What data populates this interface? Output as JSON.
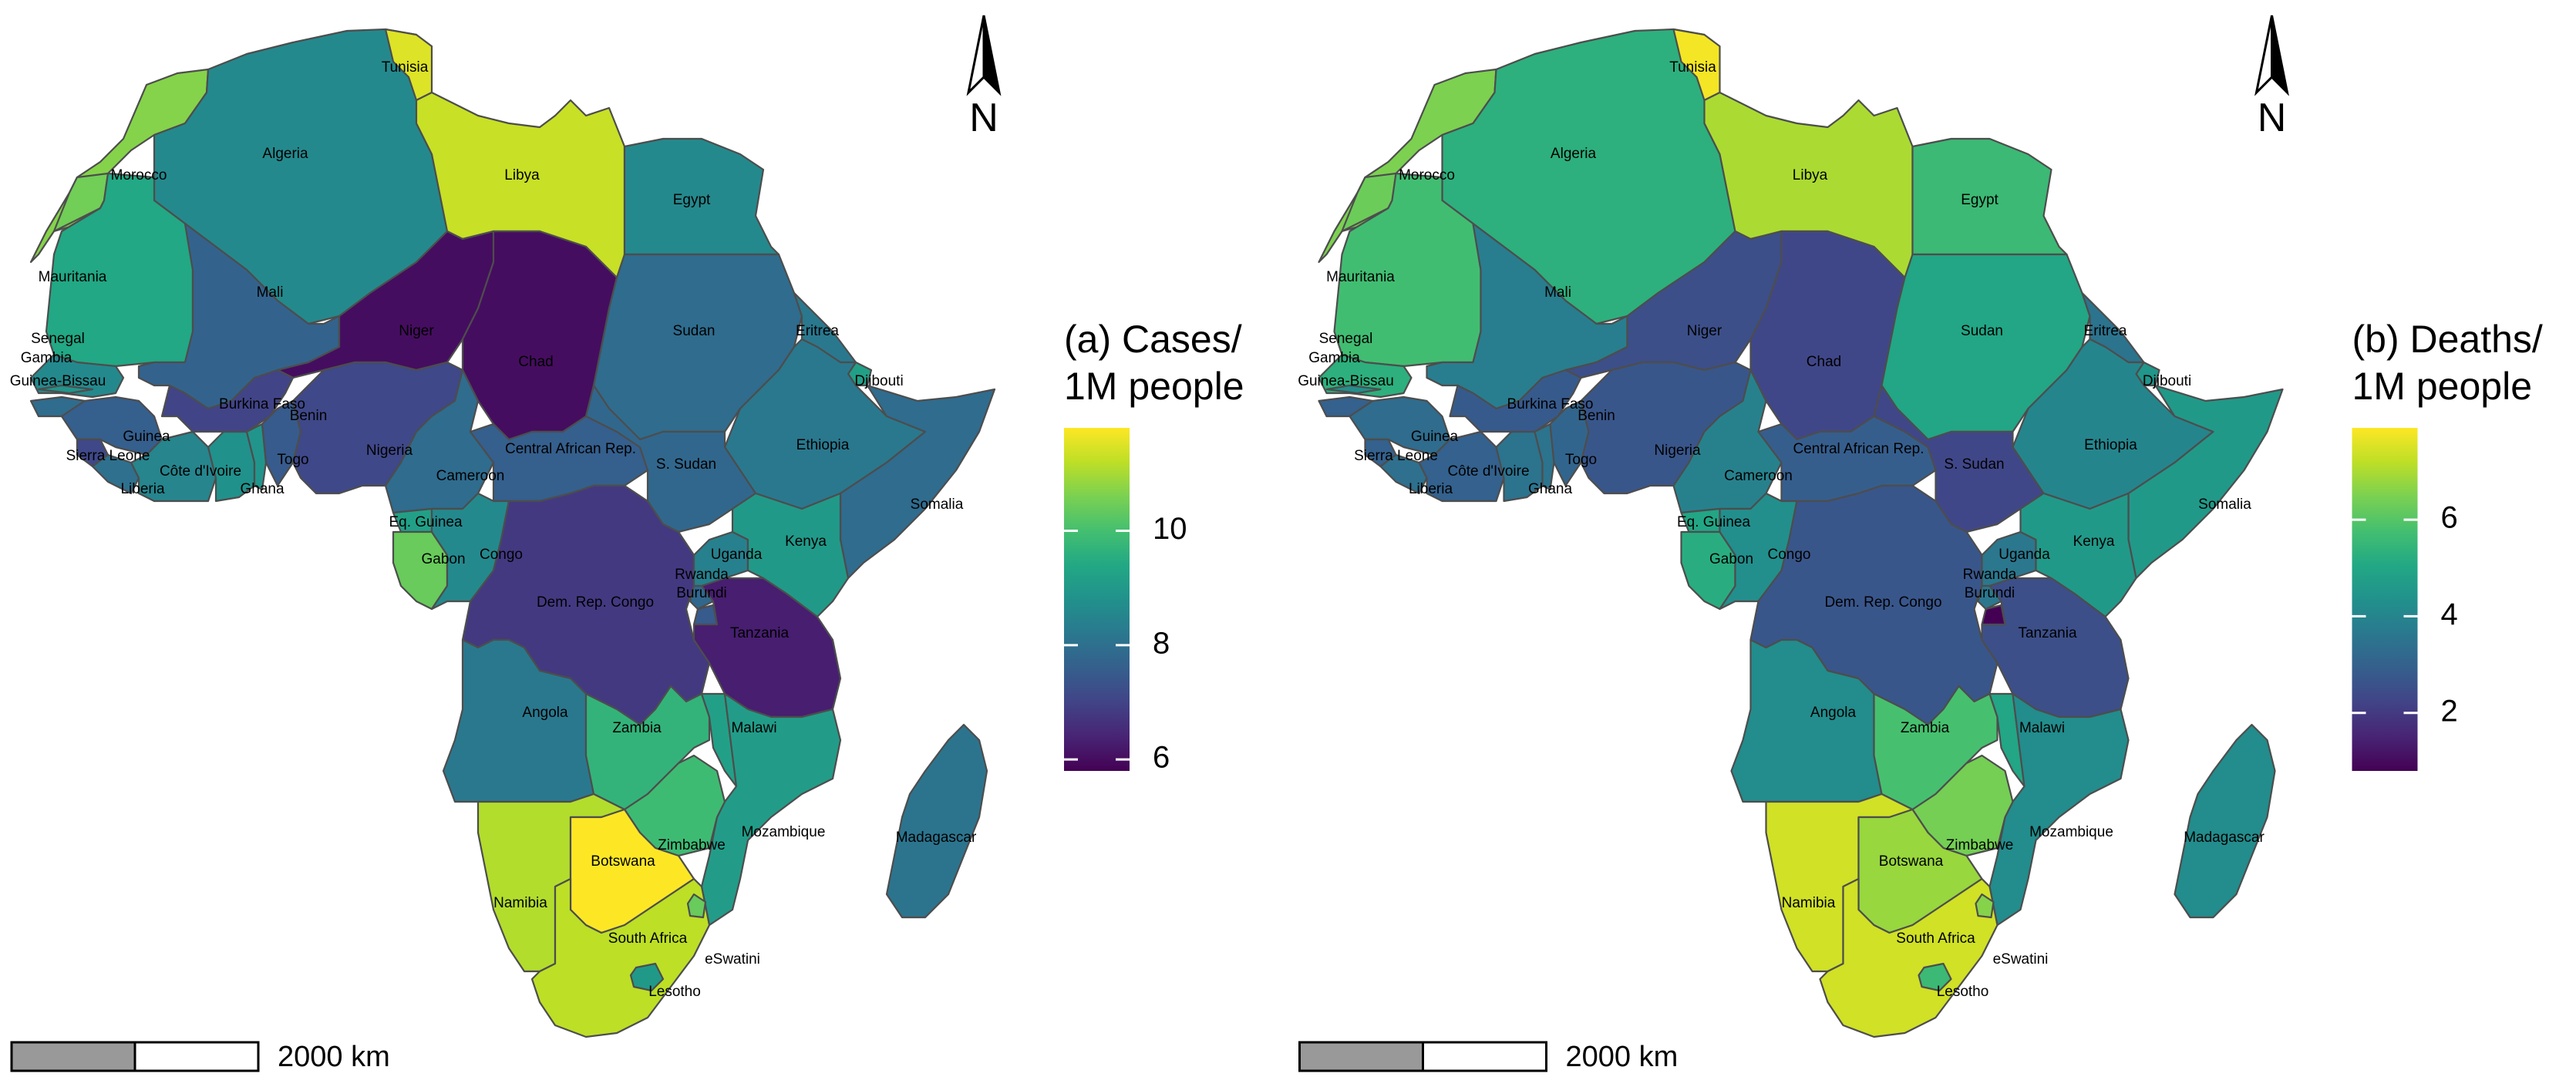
{
  "panels": [
    {
      "id": "a",
      "legend": {
        "title_line1": "(a) Cases/",
        "title_line2": "1M people",
        "range": [
          5.8,
          11.8
        ],
        "ticks": [
          {
            "label": "6",
            "value": 6
          },
          {
            "label": "8",
            "value": 8
          },
          {
            "label": "10",
            "value": 10
          }
        ]
      },
      "scale_bar": {
        "label": "2000 km"
      },
      "north_arrow": {
        "label": "N"
      },
      "values": {
        "Morocco": 10.7,
        "Algeria": 8.6,
        "Tunisia": 11.5,
        "Libya": 11.3,
        "Egypt": 8.6,
        "Western Sahara": 10.5,
        "Mauritania": 9.4,
        "Mali": 7.7,
        "Niger": 6.0,
        "Chad": 6.0,
        "Sudan": 7.9,
        "Eritrea": 8.2,
        "Djibouti": 9.2,
        "Ethiopia": 8.2,
        "Somalia": 7.9,
        "Senegal": 8.6,
        "Gambia": 8.9,
        "Guinea-Bissau": 7.9,
        "Guinea": 7.6,
        "Sierra Leone": 7.1,
        "Liberia": 8.0,
        "Côte d'Ivoire": 8.5,
        "Ghana": 8.8,
        "Burkina Faso": 7.0,
        "Togo": 8.9,
        "Benin": 7.5,
        "Nigeria": 7.1,
        "Cameroon": 7.9,
        "Central African Rep.": 7.6,
        "S. Sudan": 7.8,
        "Eq. Guinea": 9.2,
        "Gabon": 10.4,
        "Congo": 8.6,
        "Dem. Rep. Congo": 6.8,
        "Uganda": 8.4,
        "Kenya": 9.0,
        "Rwanda": 7.8,
        "Burundi": 7.5,
        "Tanzania": 6.3,
        "Angola": 8.2,
        "Zambia": 9.7,
        "Malawi": 9.2,
        "Mozambique": 9.1,
        "Zimbabwe": 9.9,
        "Namibia": 11.1,
        "Botswana": 11.8,
        "South Africa": 11.2,
        "eSwatini": 10.4,
        "Lesotho": 9.0,
        "Madagascar": 8.1
      }
    },
    {
      "id": "b",
      "legend": {
        "title_line1": "(b) Deaths/",
        "title_line2": "1M people",
        "range": [
          0.8,
          7.9
        ],
        "ticks": [
          {
            "label": "2",
            "value": 2
          },
          {
            "label": "4",
            "value": 4
          },
          {
            "label": "6",
            "value": 6
          }
        ]
      },
      "scale_bar": {
        "label": "2000 km"
      },
      "north_arrow": {
        "label": "N"
      },
      "values": {
        "Morocco": 6.5,
        "Algeria": 5.3,
        "Tunisia": 7.8,
        "Libya": 7.0,
        "Egypt": 5.6,
        "Western Sahara": 6.3,
        "Mauritania": 5.7,
        "Mali": 3.8,
        "Niger": 2.5,
        "Chad": 2.3,
        "Sudan": 5.0,
        "Eritrea": 3.5,
        "Djibouti": 4.5,
        "Ethiopia": 4.0,
        "Somalia": 4.6,
        "Senegal": 5.3,
        "Gambia": 4.3,
        "Guinea-Bissau": 3.0,
        "Guinea": 3.3,
        "Sierra Leone": 3.0,
        "Liberia": 3.4,
        "Côte d'Ivoire": 3.0,
        "Ghana": 3.5,
        "Burkina Faso": 2.8,
        "Togo": 3.5,
        "Benin": 3.1,
        "Nigeria": 2.7,
        "Cameroon": 3.9,
        "Central African Rep.": 2.9,
        "S. Sudan": 2.3,
        "Eq. Guinea": 5.0,
        "Gabon": 5.2,
        "Congo": 4.3,
        "Dem. Rep. Congo": 2.7,
        "Uganda": 3.6,
        "Kenya": 4.6,
        "Rwanda": 3.6,
        "Burundi": 0.8,
        "Tanzania": 2.5,
        "Angola": 4.2,
        "Zambia": 5.8,
        "Malawi": 5.0,
        "Mozambique": 4.2,
        "Zimbabwe": 6.4,
        "Namibia": 7.4,
        "Botswana": 6.8,
        "South Africa": 7.4,
        "eSwatini": 6.6,
        "Lesotho": 5.6,
        "Madagascar": 4.2
      }
    }
  ],
  "labels": [
    "Tunisia",
    "Morocco",
    "Algeria",
    "Libya",
    "Egypt",
    "Mauritania",
    "Mali",
    "Niger",
    "Chad",
    "Sudan",
    "Eritrea",
    "Djibouti",
    "Senegal",
    "Gambia",
    "Guinea-Bissau",
    "Guinea",
    "Sierra Leone",
    "Liberia",
    "Côte d'Ivoire",
    "Ghana",
    "Burkina Faso",
    "Togo",
    "Benin",
    "Nigeria",
    "Central African Rep.",
    "S. Sudan",
    "Ethiopia",
    "Somalia",
    "Cameroon",
    "Eq. Guinea",
    "Gabon",
    "Congo",
    "Uganda",
    "Kenya",
    "Rwanda",
    "Burundi",
    "Dem. Rep. Congo",
    "Tanzania",
    "Angola",
    "Zambia",
    "Malawi",
    "Mozambique",
    "Zimbabwe",
    "Madagascar",
    "Botswana",
    "Namibia",
    "South Africa",
    "eSwatini",
    "Lesotho"
  ]
}
